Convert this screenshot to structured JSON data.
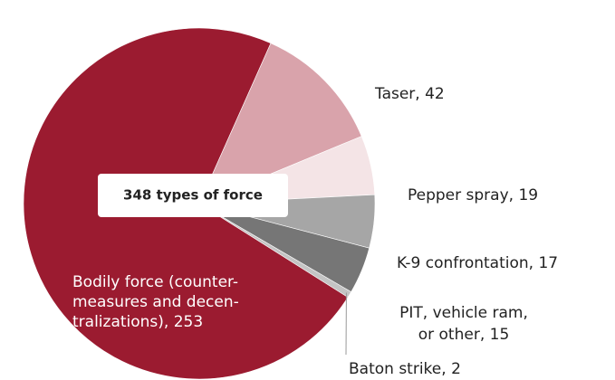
{
  "chart_data": {
    "type": "pie",
    "center_label": "348 types of force",
    "labels": [
      [
        "Bodily force (counter-",
        "measures and decen-",
        "tralizations),  253"
      ],
      [
        "Taser, 42"
      ],
      [
        "Pepper spray, 19"
      ],
      [
        "K-9 confrontation, 17"
      ],
      [
        "PIT, vehicle ram,",
        "or other, 15"
      ],
      [
        "Baton strike, 2"
      ]
    ],
    "values": [
      253,
      42,
      19,
      17,
      15,
      2
    ],
    "colors": [
      "#9b1b30",
      "#d9a3ab",
      "#f4e4e6",
      "#a6a6a6",
      "#767676",
      "#c4c4c4"
    ]
  }
}
